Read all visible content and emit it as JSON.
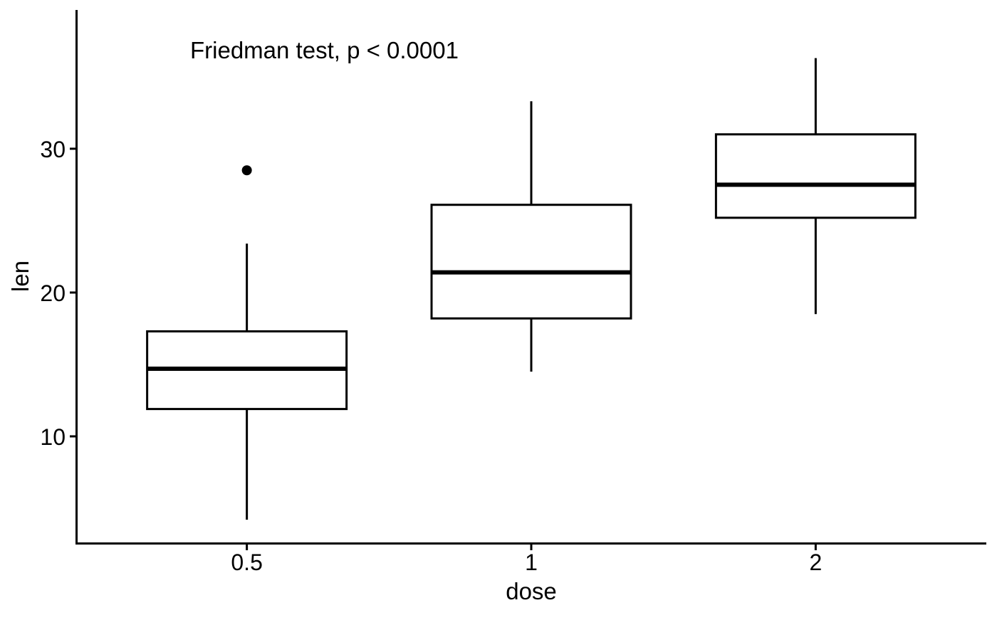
{
  "chart_data": {
    "type": "boxplot",
    "title": "",
    "annotation": "Friedman test, p < 0.0001",
    "xlabel": "dose",
    "ylabel": "len",
    "categories": [
      "0.5",
      "1",
      "2"
    ],
    "yticks": [
      10,
      20,
      30
    ],
    "ylim": [
      2.55,
      39.6
    ],
    "grid": false,
    "legend": "none",
    "colors": {
      "stroke": "#000000",
      "fill": "#FFFFFF",
      "background": "#FFFFFF"
    },
    "series": [
      {
        "category": "0.5",
        "whisker_low": 4.2,
        "q1": 11.9,
        "median": 14.7,
        "q3": 17.3,
        "whisker_high": 23.4,
        "outliers": [
          28.5
        ]
      },
      {
        "category": "1",
        "whisker_low": 14.5,
        "q1": 18.2,
        "median": 21.4,
        "q3": 26.1,
        "whisker_high": 33.3,
        "outliers": []
      },
      {
        "category": "2",
        "whisker_low": 18.5,
        "q1": 25.2,
        "median": 27.5,
        "q3": 31.0,
        "whisker_high": 36.3,
        "outliers": []
      }
    ]
  }
}
